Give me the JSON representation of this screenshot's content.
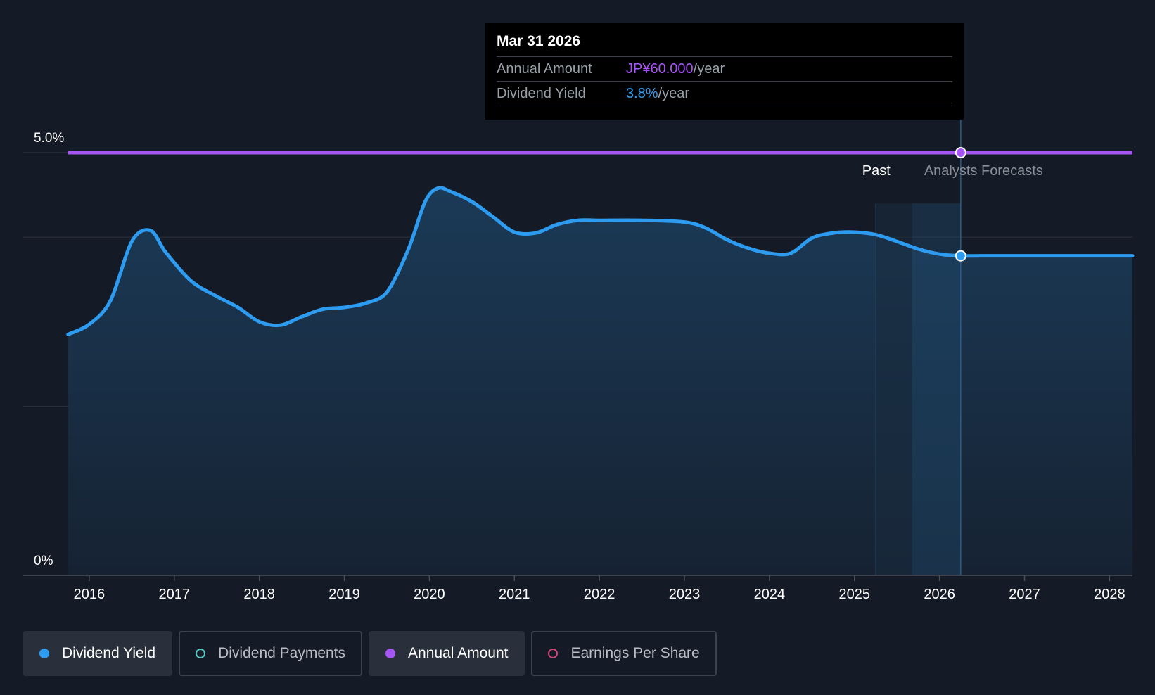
{
  "chart_data": {
    "type": "line",
    "y_axis": {
      "labels": [
        "5.0%",
        "0%"
      ],
      "ylim": [
        0,
        5.0
      ]
    },
    "x_axis": {
      "tick_labels": [
        "2016",
        "2017",
        "2018",
        "2019",
        "2020",
        "2021",
        "2022",
        "2023",
        "2024",
        "2025",
        "2026",
        "2027",
        "2028"
      ],
      "ticks": [
        2016,
        2017,
        2018,
        2019,
        2020,
        2021,
        2022,
        2023,
        2024,
        2025,
        2026,
        2027,
        2028
      ],
      "xlim": [
        2015.74,
        2028.27
      ]
    },
    "series": [
      {
        "name": "Dividend Yield",
        "color": "#2d9cf0",
        "x": [
          2015.75,
          2016.0,
          2016.25,
          2016.5,
          2016.72,
          2016.9,
          2017.2,
          2017.5,
          2017.75,
          2018.0,
          2018.25,
          2018.5,
          2018.75,
          2019.0,
          2019.25,
          2019.5,
          2019.75,
          2019.95,
          2020.1,
          2020.25,
          2020.5,
          2020.75,
          2021.0,
          2021.25,
          2021.5,
          2021.75,
          2022.0,
          2022.5,
          2023.0,
          2023.25,
          2023.5,
          2023.75,
          2024.0,
          2024.25,
          2024.5,
          2024.75,
          2025.0,
          2025.25,
          2025.5,
          2025.75,
          2026.0,
          2026.25,
          2026.5,
          2027.0,
          2027.5,
          2028.27
        ],
        "y": [
          2.85,
          2.97,
          3.25,
          3.95,
          4.08,
          3.82,
          3.48,
          3.3,
          3.17,
          3.0,
          2.96,
          3.06,
          3.15,
          3.17,
          3.22,
          3.35,
          3.85,
          4.42,
          4.58,
          4.54,
          4.42,
          4.24,
          4.06,
          4.05,
          4.15,
          4.2,
          4.2,
          4.2,
          4.18,
          4.11,
          3.97,
          3.87,
          3.81,
          3.81,
          3.99,
          4.05,
          4.06,
          4.03,
          3.95,
          3.86,
          3.8,
          3.78,
          3.78,
          3.78,
          3.78,
          3.78
        ]
      },
      {
        "name": "Annual Amount",
        "color": "#a855f7",
        "x": [
          2015.75,
          2028.27
        ],
        "y": [
          5.0,
          5.0
        ]
      }
    ],
    "regions": {
      "past_label": "Past",
      "forecast_label": "Analysts Forecasts",
      "past_shade_start": 2025.25,
      "forecast_shade_start": 2025.68,
      "cursor_x": 2026.25
    },
    "highlight": {
      "x": 2026.25,
      "dividend_yield": 3.78,
      "annual_amount_level": 5.0
    },
    "gridlines_y": [
      4.0,
      2.0
    ]
  },
  "tooltip": {
    "date": "Mar 31 2026",
    "rows": [
      {
        "label": "Annual Amount",
        "value": "JP¥60.000",
        "unit": "/year"
      },
      {
        "label": "Dividend Yield",
        "value": "3.8%",
        "unit": "/year"
      }
    ]
  },
  "legend": [
    {
      "label": "Dividend Yield",
      "color": "#2d9cf0",
      "active": true,
      "filled": true
    },
    {
      "label": "Dividend Payments",
      "color": "#4ecdc4",
      "active": false,
      "filled": false
    },
    {
      "label": "Annual Amount",
      "color": "#a855f7",
      "active": true,
      "filled": true
    },
    {
      "label": "Earnings Per Share",
      "color": "#d6457a",
      "active": false,
      "filled": false
    }
  ],
  "colors": {
    "background": "#151b26",
    "grid": "#2b313b",
    "axis": "#4a505a",
    "area_top": "#1b3a57",
    "area_bottom": "#162232"
  }
}
